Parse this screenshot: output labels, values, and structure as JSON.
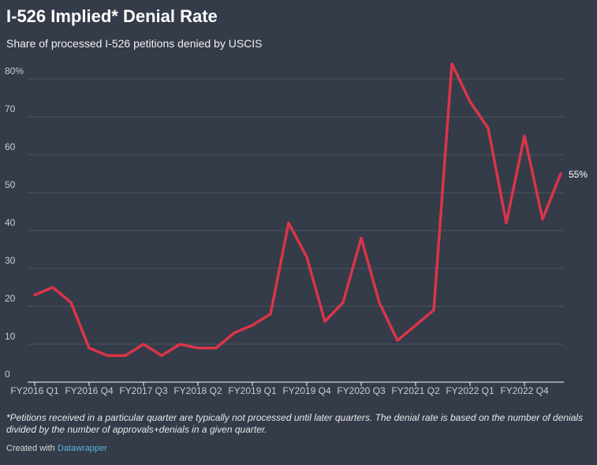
{
  "chart_data": {
    "type": "line",
    "title": "I-526 Implied* Denial Rate",
    "subtitle": "Share of processed I-526 petitions denied by USCIS",
    "note": "*Petitions received in a particular quarter are typically not processed until later quarters. The denial rate is based on the number of denials divided by the number of approvals+denials in a given quarter.",
    "credit": "Created with",
    "credit_link": "Datawrapper",
    "categories": [
      "FY2016 Q1",
      null,
      null,
      "FY2016 Q4",
      null,
      null,
      "FY2017 Q3",
      null,
      null,
      "FY2018 Q2",
      null,
      null,
      "FY2019 Q1",
      null,
      null,
      "FY2019 Q4",
      null,
      null,
      "FY2020 Q3",
      null,
      null,
      "FY2021 Q2",
      null,
      null,
      "FY2022 Q1",
      null,
      null,
      "FY2022 Q4",
      null,
      null
    ],
    "series": [
      {
        "name": "Denial rate",
        "color": "#d93548",
        "values": [
          23,
          25,
          21,
          9,
          7,
          7,
          10,
          7,
          10,
          9,
          9,
          13,
          15,
          18,
          42,
          33,
          16,
          21,
          38,
          21,
          11,
          15,
          19,
          84,
          74,
          67,
          42,
          65,
          43,
          55
        ],
        "value_labels": [
          null,
          null,
          null,
          null,
          null,
          null,
          null,
          null,
          null,
          null,
          null,
          null,
          null,
          null,
          null,
          null,
          null,
          null,
          null,
          null,
          null,
          null,
          null,
          null,
          null,
          null,
          null,
          null,
          null,
          "55%"
        ]
      }
    ],
    "ylim": [
      0,
      80
    ],
    "yticks": [
      0,
      10,
      20,
      30,
      40,
      50,
      60,
      70,
      {
        "value": 80,
        "label": "80%"
      }
    ],
    "grid": true
  }
}
